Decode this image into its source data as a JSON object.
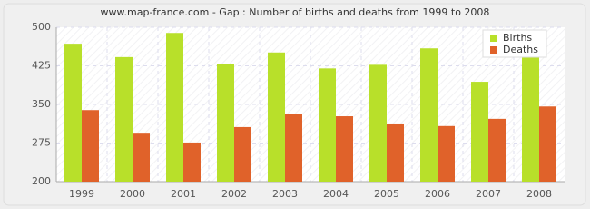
{
  "chart_data": {
    "type": "bar",
    "title": "www.map-france.com - Gap : Number of births and deaths from 1999 to 2008",
    "categories": [
      "1999",
      "2000",
      "2001",
      "2002",
      "2003",
      "2004",
      "2005",
      "2006",
      "2007",
      "2008"
    ],
    "series": [
      {
        "name": "Births",
        "color": "#b8e02a",
        "values": [
          468,
          442,
          489,
          429,
          451,
          420,
          427,
          459,
          394,
          443
        ]
      },
      {
        "name": "Deaths",
        "color": "#e0622a",
        "values": [
          339,
          295,
          276,
          306,
          332,
          327,
          313,
          308,
          322,
          346
        ]
      }
    ],
    "ylim": [
      200,
      500
    ],
    "yticks": [
      200,
      275,
      350,
      425,
      500
    ],
    "grid": true,
    "legend": "top-right"
  }
}
